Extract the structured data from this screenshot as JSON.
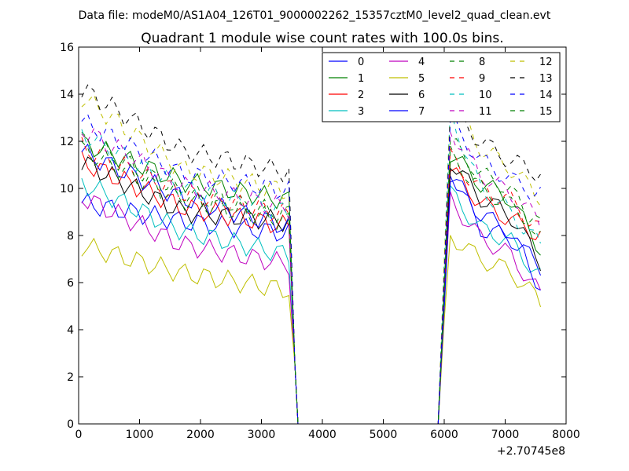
{
  "chart_data": {
    "type": "line",
    "suptitle": "Data file: modeM0/AS1A04_126T01_9000002262_15357cztM0_level2_quad_clean.evt",
    "title": "Quadrant 1 module wise count rates with 100.0s bins.",
    "xlabel": "",
    "ylabel": "",
    "x_offset_label": "+2.70745e8",
    "xlim": [
      0,
      8000
    ],
    "ylim": [
      0,
      16
    ],
    "xticks": [
      0,
      1000,
      2000,
      3000,
      4000,
      5000,
      6000,
      7000,
      8000
    ],
    "yticks": [
      0,
      2,
      4,
      6,
      8,
      10,
      12,
      14,
      16
    ],
    "grid": false,
    "legend_position": "top-right",
    "legend_columns": 4,
    "gap": [
      3600,
      5900
    ],
    "x": [
      50,
      150,
      250,
      350,
      450,
      550,
      650,
      750,
      850,
      950,
      1050,
      1150,
      1250,
      1350,
      1450,
      1550,
      1650,
      1750,
      1850,
      1950,
      2050,
      2150,
      2250,
      2350,
      2450,
      2550,
      2650,
      2750,
      2850,
      2950,
      3050,
      3150,
      3250,
      3350,
      3450,
      3550,
      3600,
      3700,
      3800,
      3900,
      4000,
      4100,
      4200,
      4300,
      4400,
      4500,
      4600,
      4700,
      4800,
      4900,
      5000,
      5100,
      5200,
      5300,
      5400,
      5500,
      5600,
      5700,
      5800,
      5900,
      6000,
      6100,
      6200,
      6300,
      6400,
      6500,
      6600,
      6700,
      6800,
      6900,
      7000,
      7100,
      7200,
      7300,
      7400,
      7500,
      7580
    ],
    "series": [
      {
        "name": "0",
        "color": "#0000ff",
        "dash": false,
        "level": [
          9.4,
          8.6,
          8.1
        ],
        "second": [
          10.8,
          8.3,
          7.9,
          6.7
        ]
      },
      {
        "name": "1",
        "color": "#008000",
        "dash": false,
        "level": [
          12.0,
          10.3,
          9.5
        ],
        "second": [
          11.5,
          10.2,
          9.6,
          7.4
        ]
      },
      {
        "name": "2",
        "color": "#ff0000",
        "dash": false,
        "level": [
          11.2,
          9.2,
          8.4
        ],
        "second": [
          10.8,
          9.4,
          8.7,
          8.0
        ]
      },
      {
        "name": "3",
        "color": "#00bfbf",
        "dash": false,
        "level": [
          10.3,
          8.2,
          7.2
        ],
        "second": [
          9.8,
          8.3,
          7.8,
          6.2
        ]
      },
      {
        "name": "4",
        "color": "#bf00bf",
        "dash": false,
        "level": [
          9.7,
          7.6,
          6.8
        ],
        "second": [
          9.5,
          7.9,
          7.2,
          5.5
        ]
      },
      {
        "name": "5",
        "color": "#bfbf00",
        "dash": false,
        "level": [
          7.6,
          6.4,
          5.7
        ],
        "second": [
          8.0,
          7.0,
          6.5,
          5.2
        ]
      },
      {
        "name": "6",
        "color": "#000000",
        "dash": false,
        "level": [
          11.2,
          9.0,
          8.6
        ],
        "second": [
          11.2,
          9.6,
          8.9,
          6.9
        ]
      },
      {
        "name": "7",
        "color": "#0000ff",
        "dash": false,
        "level": [
          11.6,
          9.6,
          8.4
        ],
        "second": [
          10.6,
          8.9,
          8.2,
          5.8
        ]
      },
      {
        "name": "8",
        "color": "#008000",
        "dash": true,
        "level": [
          12.1,
          9.8,
          8.9
        ],
        "second": [
          12.0,
          10.6,
          10.0,
          7.9
        ]
      },
      {
        "name": "9",
        "color": "#ff0000",
        "dash": true,
        "level": [
          11.8,
          9.8,
          8.9
        ],
        "second": [
          11.3,
          10.0,
          9.5,
          8.2
        ]
      },
      {
        "name": "10",
        "color": "#00bfbf",
        "dash": true,
        "level": [
          12.4,
          10.0,
          9.0
        ],
        "second": [
          13.2,
          10.0,
          9.0,
          7.6
        ]
      },
      {
        "name": "11",
        "color": "#bf00bf",
        "dash": true,
        "level": [
          12.6,
          10.1,
          9.2
        ],
        "second": [
          12.5,
          10.6,
          9.8,
          8.6
        ]
      },
      {
        "name": "12",
        "color": "#bfbf00",
        "dash": true,
        "level": [
          14.0,
          10.8,
          9.9
        ],
        "second": [
          13.9,
          11.7,
          10.9,
          9.6
        ]
      },
      {
        "name": "13",
        "color": "#000000",
        "dash": true,
        "level": [
          14.3,
          11.6,
          10.7
        ],
        "second": [
          13.4,
          12.0,
          11.2,
          10.6
        ]
      },
      {
        "name": "14",
        "color": "#0000ff",
        "dash": true,
        "level": [
          12.9,
          10.6,
          9.9
        ],
        "second": [
          12.8,
          11.2,
          10.4,
          9.7
        ]
      },
      {
        "name": "15",
        "color": "#008000",
        "dash": true,
        "level": [
          11.7,
          9.5,
          8.6
        ],
        "second": [
          11.4,
          10.0,
          9.3,
          8.4
        ]
      }
    ]
  }
}
